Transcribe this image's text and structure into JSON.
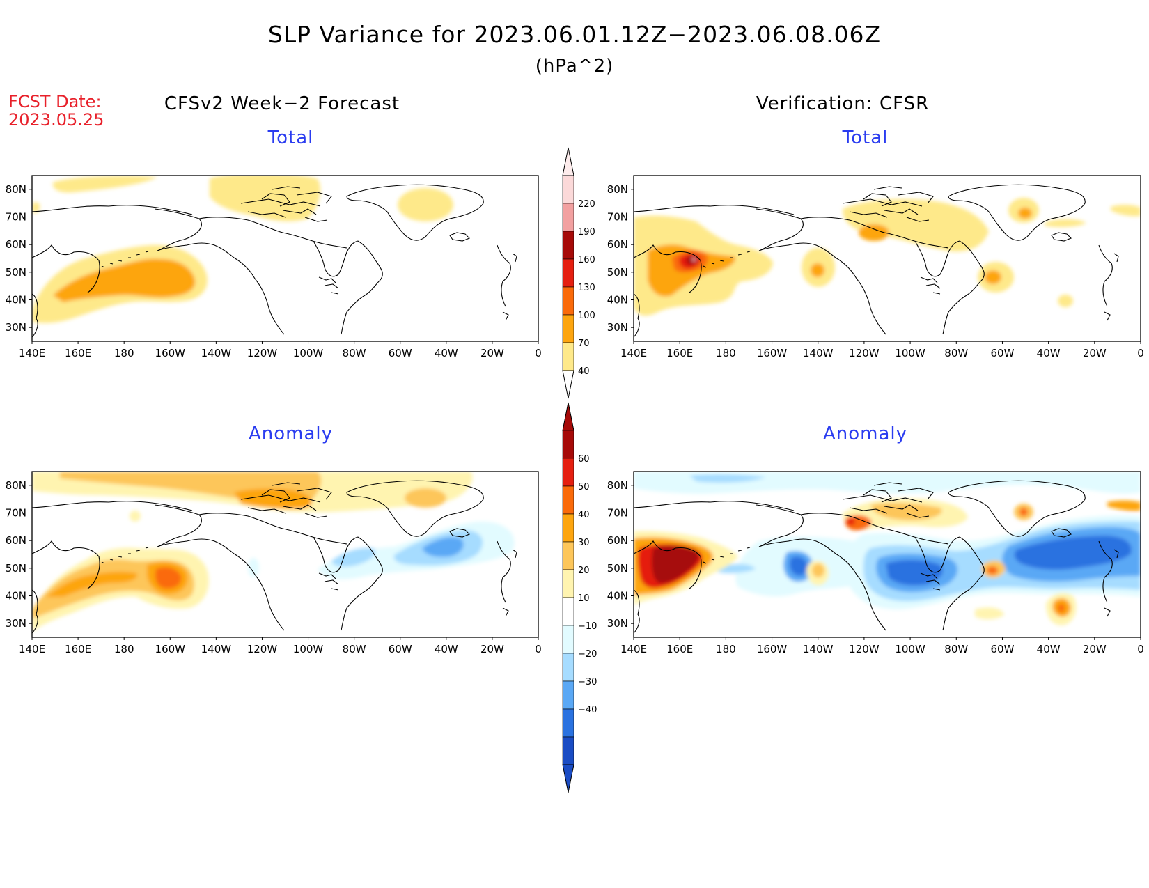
{
  "title": "SLP Variance for 2023.06.01.12Z−2023.06.08.06Z",
  "units": "(hPa^2)",
  "forecast_date": {
    "label": "FCST Date:",
    "value": "2023.05.25"
  },
  "columns": [
    {
      "heading": "CFSv2 Week−2 Forecast"
    },
    {
      "heading": "Verification: CFSR"
    }
  ],
  "panels": [
    {
      "id": "fcst-total",
      "title": "Total"
    },
    {
      "id": "verif-total",
      "title": "Total"
    },
    {
      "id": "fcst-anomaly",
      "title": "Anomaly"
    },
    {
      "id": "verif-anomaly",
      "title": "Anomaly"
    }
  ],
  "axes": {
    "longitude_labels": [
      "140E",
      "160E",
      "180",
      "160W",
      "140W",
      "120W",
      "100W",
      "80W",
      "60W",
      "40W",
      "20W",
      "0"
    ],
    "latitude_labels": [
      "80N",
      "70N",
      "60N",
      "50N",
      "40N",
      "30N"
    ],
    "lon_range": [
      140,
      360
    ],
    "lat_range": [
      25,
      85
    ]
  },
  "colorbars": {
    "total": {
      "levels": [
        "40",
        "70",
        "100",
        "130",
        "160",
        "190",
        "220"
      ],
      "colors": [
        "#fee98a",
        "#fda50f",
        "#fa6a0a",
        "#e51f10",
        "#a60a08",
        "#f2a0a0",
        "#fbd9d9"
      ]
    },
    "anomaly": {
      "levels": [
        "60",
        "50",
        "40",
        "30",
        "20",
        "10",
        "−10",
        "−20",
        "−30",
        "−40"
      ],
      "colors_warm": [
        "#a60a08",
        "#e51f10",
        "#fa6a0a",
        "#fda50f",
        "#fdc65a",
        "#fff4b0"
      ],
      "colors_cool": [
        "#e2fbff",
        "#a6dcff",
        "#5aa8f5",
        "#2a72e0",
        "#1a4cc4"
      ]
    }
  },
  "palette": {
    "total_fill": [
      "#fee98a",
      "#fdc65a",
      "#fda50f",
      "#fa6a0a",
      "#e51f10",
      "#a60a08",
      "#f2a0a0"
    ],
    "cool_fill": [
      "#e2fbff",
      "#a6dcff",
      "#5aa8f5",
      "#2a72e0"
    ]
  }
}
